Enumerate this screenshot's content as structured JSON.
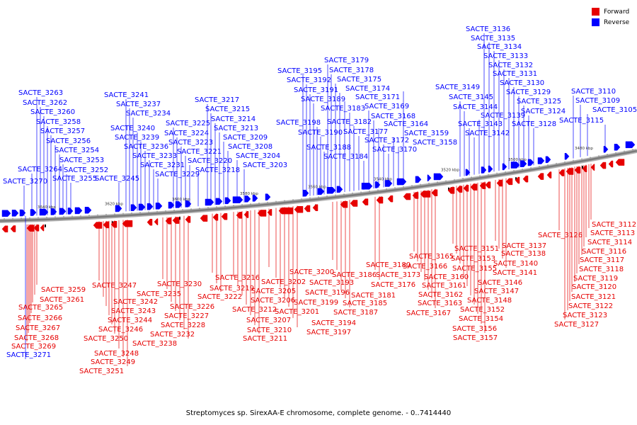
{
  "legend": {
    "forward_label": "Forward",
    "reverse_label": "Reverse",
    "forward_color": "#e60000",
    "reverse_color": "#0000ff"
  },
  "caption": "Streptomyces sp. SirexAA-E chromosome, complete genome. - 0..7414440",
  "position_labels": [
    "3640 kbp",
    "3620 kbp",
    "3600 kbp",
    "3580 kbp",
    "3560 kbp",
    "3540 kbp",
    "3520 kbp",
    "3500 kbp",
    "3480 kbp"
  ],
  "reverse_genes": [
    "SACTE_3270",
    "SACTE_3264",
    "SACTE_3263",
    "SACTE_3262",
    "SACTE_3260",
    "SACTE_3258",
    "SACTE_3257",
    "SACTE_3256",
    "SACTE_3254",
    "SACTE_3253",
    "SACTE_3252",
    "SACTE_3255",
    "SACTE_3245",
    "SACTE_3241",
    "SACTE_3237",
    "SACTE_3234",
    "SACTE_3240",
    "SACTE_3239",
    "SACTE_3236",
    "SACTE_3233",
    "SACTE_3231",
    "SACTE_3229",
    "SACTE_3225",
    "SACTE_3224",
    "SACTE_3223",
    "SACTE_3221",
    "SACTE_3220",
    "SACTE_3218",
    "SACTE_3217",
    "SACTE_3215",
    "SACTE_3214",
    "SACTE_3213",
    "SACTE_3209",
    "SACTE_3208",
    "SACTE_3204",
    "SACTE_3203",
    "SACTE_3195",
    "SACTE_3192",
    "SACTE_3191",
    "SACTE_3189",
    "SACTE_3198",
    "SACTE_3190",
    "SACTE_3188",
    "SACTE_3179",
    "SACTE_3178",
    "SACTE_3175",
    "SACTE_3174",
    "SACTE_3171",
    "SACTE_3183",
    "SACTE_3182",
    "SACTE_3177",
    "SACTE_3184",
    "SACTE_3169",
    "SACTE_3168",
    "SACTE_3164",
    "SACTE_3172",
    "SACTE_3170",
    "SACTE_3159",
    "SACTE_3158",
    "SACTE_3149",
    "SACTE_3145",
    "SACTE_3144",
    "SACTE_3143",
    "SACTE_3142",
    "SACTE_3139",
    "SACTE_3136",
    "SACTE_3135",
    "SACTE_3134",
    "SACTE_3133",
    "SACTE_3132",
    "SACTE_3131",
    "SACTE_3130",
    "SACTE_3129",
    "SACTE_3125",
    "SACTE_3124",
    "SACTE_3128",
    "SACTE_3110",
    "SACTE_3109",
    "SACTE_3105",
    "SACTE_3115",
    "SACTE_3271"
  ],
  "forward_genes": [
    "SACTE_3259",
    "SACTE_3261",
    "SACTE_3265",
    "SACTE_3266",
    "SACTE_3267",
    "SACTE_3268",
    "SACTE_3269",
    "SACTE_3247",
    "SACTE_3242",
    "SACTE_3243",
    "SACTE_3244",
    "SACTE_3246",
    "SACTE_3250",
    "SACTE_3248",
    "SACTE_3249",
    "SACTE_3251",
    "SACTE_3230",
    "SACTE_3235",
    "SACTE_3226",
    "SACTE_3227",
    "SACTE_3228",
    "SACTE_3232",
    "SACTE_3238",
    "SACTE_3216",
    "SACTE_3219",
    "SACTE_3222",
    "SACTE_3202",
    "SACTE_3205",
    "SACTE_3206",
    "SACTE_3212",
    "SACTE_3207",
    "SACTE_3210",
    "SACTE_3211",
    "SACTE_3200",
    "SACTE_3193",
    "SACTE_3196",
    "SACTE_3199",
    "SACTE_3201",
    "SACTE_3194",
    "SACTE_3197",
    "SACTE_3180",
    "SACTE_3186",
    "SACTE_3181",
    "SACTE_3185",
    "SACTE_3187",
    "SACTE_3173",
    "SACTE_3176",
    "SACTE_3165",
    "SACTE_3166",
    "SACTE_3160",
    "SACTE_3161",
    "SACTE_3162",
    "SACTE_3163",
    "SACTE_3167",
    "SACTE_3151",
    "SACTE_3153",
    "SACTE_3155",
    "SACTE_3146",
    "SACTE_3147",
    "SACTE_3148",
    "SACTE_3152",
    "SACTE_3154",
    "SACTE_3156",
    "SACTE_3157",
    "SACTE_3137",
    "SACTE_3138",
    "SACTE_3140",
    "SACTE_3141",
    "SACTE_3126",
    "SACTE_3112",
    "SACTE_3113",
    "SACTE_3114",
    "SACTE_3116",
    "SACTE_3117",
    "SACTE_3118",
    "SACTE_3119",
    "SACTE_3120",
    "SACTE_3121",
    "SACTE_3122",
    "SACTE_3123",
    "SACTE_3127"
  ]
}
